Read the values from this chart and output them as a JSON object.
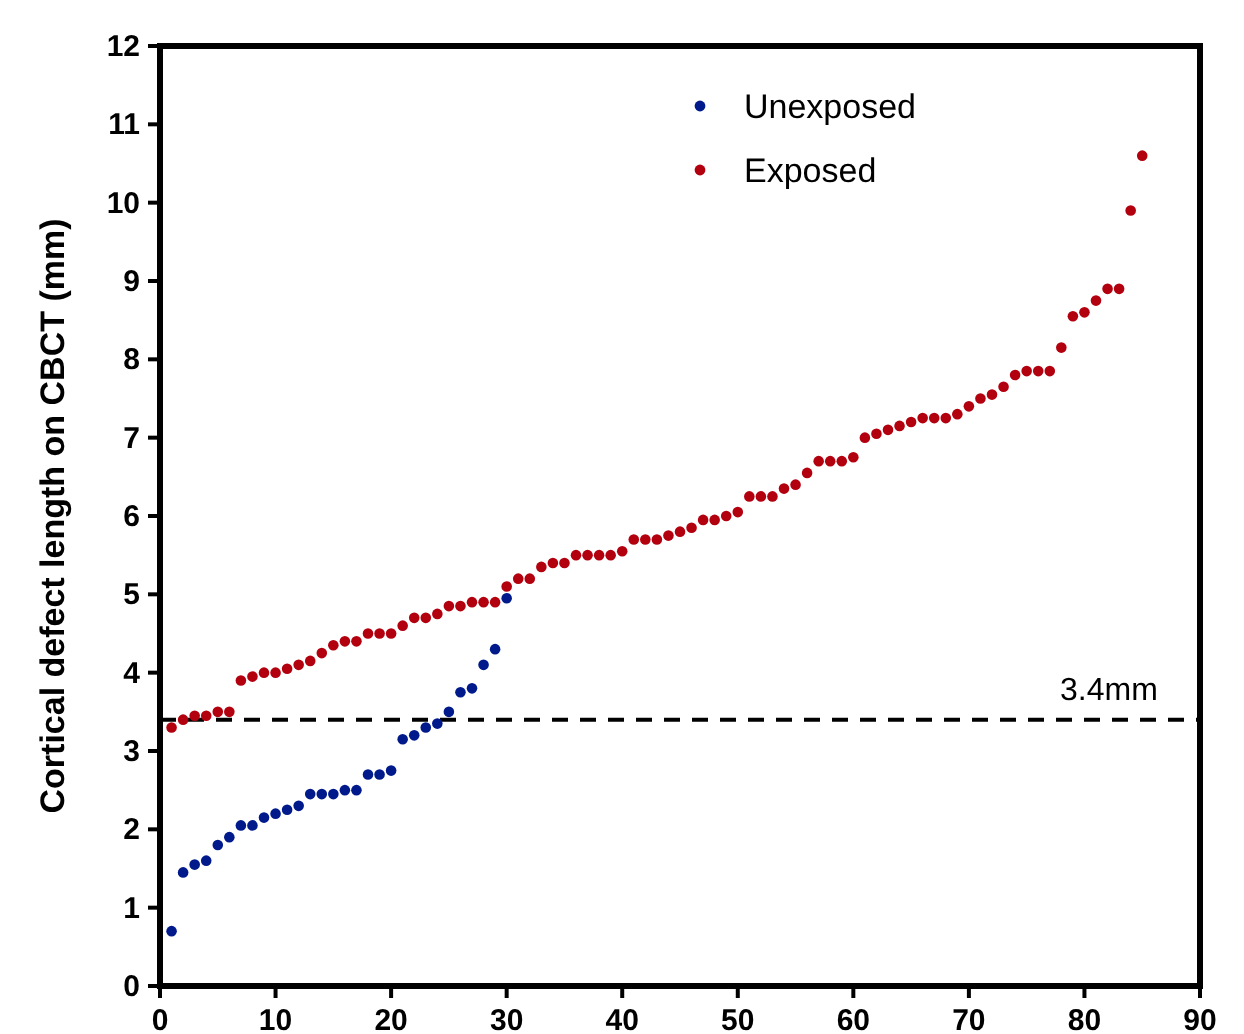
{
  "chart_data": {
    "type": "scatter",
    "ylabel": "Cortical defect length on CBCT (mm)",
    "xlim": [
      0,
      90
    ],
    "xticks": [
      0,
      10,
      20,
      30,
      40,
      50,
      60,
      70,
      80,
      90
    ],
    "ylim": [
      0,
      12
    ],
    "yticks": [
      0,
      1,
      2,
      3,
      4,
      5,
      6,
      7,
      8,
      9,
      10,
      11,
      12
    ],
    "grid": false,
    "legend": "top right",
    "marker": "circle",
    "series": [
      {
        "name": "Unexposed",
        "color": "#001a8c",
        "x": [
          1,
          2,
          3,
          4,
          5,
          6,
          7,
          8,
          9,
          10,
          11,
          12,
          13,
          14,
          15,
          16,
          17,
          18,
          19,
          20,
          21,
          22,
          23,
          24,
          25,
          26,
          27,
          28,
          29,
          30
        ],
        "values": [
          0.7,
          1.45,
          1.55,
          1.6,
          1.8,
          1.9,
          2.05,
          2.05,
          2.15,
          2.2,
          2.25,
          2.3,
          2.45,
          2.45,
          2.45,
          2.5,
          2.5,
          2.7,
          2.7,
          2.75,
          3.15,
          3.2,
          3.3,
          3.35,
          3.5,
          3.75,
          3.8,
          4.1,
          4.3,
          4.95
        ]
      },
      {
        "name": "Exposed",
        "color": "#b3000f",
        "x": [
          1,
          2,
          3,
          4,
          5,
          6,
          7,
          8,
          9,
          10,
          11,
          12,
          13,
          14,
          15,
          16,
          17,
          18,
          19,
          20,
          21,
          22,
          23,
          24,
          25,
          26,
          27,
          28,
          29,
          30,
          31,
          32,
          33,
          34,
          35,
          36,
          37,
          38,
          39,
          40,
          41,
          42,
          43,
          44,
          45,
          46,
          47,
          48,
          49,
          50,
          51,
          52,
          53,
          54,
          55,
          56,
          57,
          58,
          59,
          60,
          61,
          62,
          63,
          64,
          65,
          66,
          67,
          68,
          69,
          70,
          71,
          72,
          73,
          74,
          75,
          76,
          77,
          78,
          79,
          80,
          81,
          82,
          83,
          84,
          85
        ],
        "values": [
          3.3,
          3.4,
          3.45,
          3.45,
          3.5,
          3.5,
          3.9,
          3.95,
          4.0,
          4.0,
          4.05,
          4.1,
          4.15,
          4.25,
          4.35,
          4.4,
          4.4,
          4.5,
          4.5,
          4.5,
          4.6,
          4.7,
          4.7,
          4.75,
          4.85,
          4.85,
          4.9,
          4.9,
          4.9,
          5.1,
          5.2,
          5.2,
          5.35,
          5.4,
          5.4,
          5.5,
          5.5,
          5.5,
          5.5,
          5.55,
          5.7,
          5.7,
          5.7,
          5.75,
          5.8,
          5.85,
          5.95,
          5.95,
          6.0,
          6.05,
          6.25,
          6.25,
          6.25,
          6.35,
          6.4,
          6.55,
          6.7,
          6.7,
          6.7,
          6.75,
          7.0,
          7.05,
          7.1,
          7.15,
          7.2,
          7.25,
          7.25,
          7.25,
          7.3,
          7.4,
          7.5,
          7.55,
          7.65,
          7.8,
          7.85,
          7.85,
          7.85,
          8.15,
          8.55,
          8.6,
          8.75,
          8.9,
          8.9,
          9.9,
          10.6
        ]
      }
    ],
    "ref_lines": [
      {
        "axis": "y",
        "value": 3.4,
        "label": "3.4mm",
        "color": "#000000",
        "line_style": "dashed"
      }
    ]
  }
}
